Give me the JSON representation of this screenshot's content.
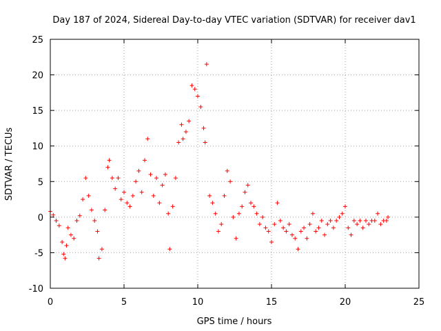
{
  "chart_data": {
    "type": "scatter",
    "title": "Day 187 of 2024, Sidereal Day-to-day VTEC variation (SDTVAR) for receiver dav1",
    "xlabel": "GPS time / hours",
    "ylabel": "SDTVAR / TECUs",
    "xlim": [
      0,
      25
    ],
    "ylim": [
      -10,
      25
    ],
    "xticks": [
      0,
      5,
      10,
      15,
      20,
      25
    ],
    "yticks": [
      -10,
      -5,
      0,
      5,
      10,
      15,
      20,
      25
    ],
    "grid": true,
    "marker": "+",
    "color": "#ff0000",
    "series": [
      {
        "name": "dav1",
        "x": [
          0.0,
          0.2,
          0.4,
          0.6,
          0.8,
          0.9,
          1.0,
          1.1,
          1.2,
          1.4,
          1.6,
          1.8,
          2.0,
          2.2,
          2.4,
          2.6,
          2.8,
          3.0,
          3.2,
          3.3,
          3.5,
          3.7,
          3.9,
          4.0,
          4.2,
          4.4,
          4.6,
          4.8,
          5.0,
          5.2,
          5.4,
          5.6,
          5.8,
          6.0,
          6.2,
          6.4,
          6.6,
          6.8,
          7.0,
          7.2,
          7.4,
          7.6,
          7.8,
          8.0,
          8.1,
          8.3,
          8.5,
          8.7,
          8.9,
          9.0,
          9.2,
          9.4,
          9.6,
          9.8,
          10.0,
          10.2,
          10.4,
          10.5,
          10.6,
          10.8,
          11.0,
          11.2,
          11.4,
          11.6,
          11.8,
          12.0,
          12.2,
          12.4,
          12.6,
          12.8,
          13.0,
          13.2,
          13.4,
          13.6,
          13.8,
          14.0,
          14.2,
          14.4,
          14.6,
          14.8,
          15.0,
          15.2,
          15.4,
          15.6,
          15.8,
          16.0,
          16.2,
          16.4,
          16.6,
          16.8,
          17.0,
          17.2,
          17.4,
          17.6,
          17.8,
          18.0,
          18.2,
          18.4,
          18.6,
          18.8,
          19.0,
          19.2,
          19.4,
          19.6,
          19.8,
          20.0,
          20.2,
          20.4,
          20.6,
          20.8,
          21.0,
          21.2,
          21.4,
          21.6,
          21.8,
          22.0,
          22.2,
          22.4,
          22.6,
          22.8,
          22.9
        ],
        "y": [
          0.8,
          0.3,
          -0.5,
          -1.2,
          -3.5,
          -5.2,
          -5.8,
          -4.0,
          -1.5,
          -2.5,
          -3.0,
          -0.5,
          0.2,
          2.5,
          5.5,
          3.0,
          1.0,
          -0.5,
          -2.0,
          -5.8,
          -4.5,
          1.0,
          7.0,
          8.0,
          5.5,
          4.0,
          5.5,
          2.5,
          3.5,
          2.0,
          1.5,
          3.0,
          5.0,
          6.5,
          3.5,
          8.0,
          11.0,
          6.0,
          3.0,
          5.5,
          2.0,
          4.5,
          6.0,
          0.5,
          -4.5,
          1.5,
          5.5,
          10.5,
          13.0,
          11.0,
          12.0,
          13.5,
          18.5,
          18.0,
          17.0,
          15.5,
          12.5,
          10.5,
          21.5,
          3.0,
          2.0,
          0.5,
          -2.0,
          -1.0,
          3.0,
          6.5,
          5.0,
          0.0,
          -3.0,
          0.5,
          1.5,
          3.5,
          4.5,
          2.0,
          1.5,
          0.5,
          -1.0,
          0.0,
          -1.5,
          -2.0,
          -3.5,
          -1.0,
          2.0,
          -0.5,
          -1.5,
          -2.0,
          -1.0,
          -2.5,
          -3.0,
          -4.5,
          -2.0,
          -1.5,
          -3.0,
          -1.0,
          0.5,
          -2.0,
          -1.5,
          -0.5,
          -2.5,
          -1.0,
          -0.5,
          -1.5,
          -0.5,
          0.0,
          0.5,
          1.5,
          -1.5,
          -2.5,
          -0.5,
          -1.0,
          -0.5,
          -1.5,
          -0.5,
          -1.0,
          -0.5,
          -0.5,
          0.5,
          -1.0,
          -0.5,
          -0.5,
          0.0
        ]
      }
    ]
  }
}
